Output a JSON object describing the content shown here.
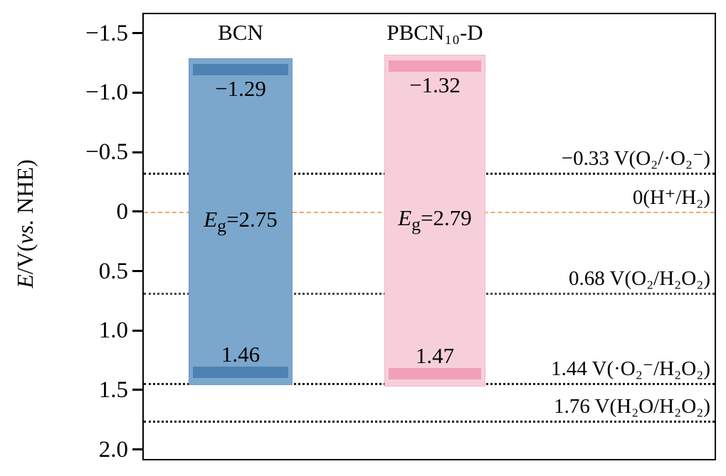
{
  "axis": {
    "label_e": "E",
    "label_mid": "/V(",
    "label_vs": "vs.",
    "label_close": " NHE)",
    "ticks": [
      {
        "label": "−1.5",
        "value": -1.5
      },
      {
        "label": "−1.0",
        "value": -1.0
      },
      {
        "label": "−0.5",
        "value": -0.5
      },
      {
        "label": "0",
        "value": 0
      },
      {
        "label": "0.5",
        "value": 0.5
      },
      {
        "label": "1.0",
        "value": 1.0
      },
      {
        "label": "1.5",
        "value": 1.5
      },
      {
        "label": "2.0",
        "value": 2.0
      }
    ]
  },
  "chart_data": {
    "type": "bar",
    "title": "",
    "ylabel": "E/V(vs. NHE)",
    "axis_range": {
      "top": -1.66,
      "bottom": 2.08
    },
    "grid": false,
    "series": [
      {
        "name": "BCN",
        "conduction_band": -1.29,
        "valence_band": 1.46,
        "band_gap": 2.75,
        "cb_label": "−1.29",
        "vb_label": "1.46",
        "fill": "#7ba7cc",
        "band_edge_color": "#4e82b2",
        "border_color": "#6d9bc2"
      },
      {
        "name": "PBCN₁₀-D",
        "conduction_band": -1.32,
        "valence_band": 1.47,
        "band_gap": 2.79,
        "cb_label": "−1.32",
        "vb_label": "1.47",
        "fill": "#f7cfda",
        "band_edge_color": "#f2a0b8",
        "border_color": "#efb8c8"
      }
    ],
    "reference_lines": [
      {
        "value": -0.33,
        "label": "−0.33 V(O₂/·O₂⁻)",
        "style": "dotted",
        "color": "#1a1a1a"
      },
      {
        "value": 0,
        "label": "0(H⁺/H₂)",
        "style": "dashed",
        "color": "#f0a868"
      },
      {
        "value": 0.68,
        "label": "0.68 V(O₂/H₂O₂)",
        "style": "dotted",
        "color": "#4a4a4a"
      },
      {
        "value": 1.44,
        "label": "1.44 V(·O₂⁻/H₂O₂)",
        "style": "dotted",
        "color": "#1a1a1a"
      },
      {
        "value": 1.76,
        "label": "1.76 V(H₂O/H₂O₂)",
        "style": "dotted",
        "color": "#1a1a1a"
      }
    ]
  }
}
